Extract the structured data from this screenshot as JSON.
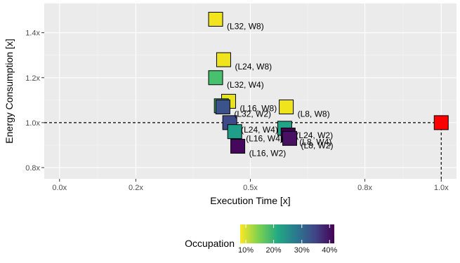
{
  "chart_data": {
    "type": "scatter",
    "xlabel": "Execution Time [x]",
    "ylabel": "Energy Consumption [x]",
    "xlim": [
      -0.04,
      1.04
    ],
    "ylim": [
      0.75,
      1.53
    ],
    "x_ticks": [
      0,
      0.2,
      0.5,
      0.8,
      1.0
    ],
    "x_tick_labels": [
      "0.0x",
      "0.2x",
      "0.5x",
      "0.8x",
      "1.0x"
    ],
    "y_ticks": [
      0.8,
      1.0,
      1.2,
      1.4
    ],
    "y_tick_labels": [
      "0.8x",
      "1.0x",
      "1.2x",
      "1.4x"
    ],
    "reference_lines": {
      "y": 1.0,
      "x": 1.0,
      "style": "dashed"
    },
    "grid": true,
    "background": "#ebebeb",
    "legend": {
      "title": "Occupation",
      "placement": "bottom",
      "colormap": "viridis (reversed)",
      "ticks": [
        "10%",
        "20%",
        "30%",
        "40%"
      ]
    },
    "points": [
      {
        "label": "(L32, W8)",
        "x": 0.409,
        "y": 1.46,
        "color": "#f2e51d"
      },
      {
        "label": "(L24, W8)",
        "x": 0.43,
        "y": 1.28,
        "color": "#f0e41e"
      },
      {
        "label": "(L32, W4)",
        "x": 0.409,
        "y": 1.2,
        "color": "#48c16e"
      },
      {
        "label": "(L16, W8)",
        "x": 0.443,
        "y": 1.095,
        "color": "#e8e419"
      },
      {
        "label": "",
        "x": 0.424,
        "y": 1.075,
        "color": "#3cbb75"
      },
      {
        "label": "(L32, W2)",
        "x": 0.428,
        "y": 1.07,
        "color": "#3b528b"
      },
      {
        "label": "(L8, W8)",
        "x": 0.594,
        "y": 1.07,
        "color": "#f0e51c"
      },
      {
        "label": "(L24, W4)",
        "x": 0.446,
        "y": 1.0,
        "color": "#3e4989"
      },
      {
        "label": "(L24, W2)",
        "x": 0.59,
        "y": 0.975,
        "color": "#20a386"
      },
      {
        "label": "(L16, W4)",
        "x": 0.459,
        "y": 0.96,
        "color": "#1f9e89"
      },
      {
        "label": "(L8, W4)",
        "x": 0.599,
        "y": 0.945,
        "color": "#440154"
      },
      {
        "label": "(L8, W2)",
        "x": 0.603,
        "y": 0.93,
        "color": "#471063"
      },
      {
        "label": "(L16, W2)",
        "x": 0.467,
        "y": 0.895,
        "color": "#46085c"
      },
      {
        "label": "",
        "x": 1.0,
        "y": 1.0,
        "color": "#ff0000"
      }
    ]
  }
}
